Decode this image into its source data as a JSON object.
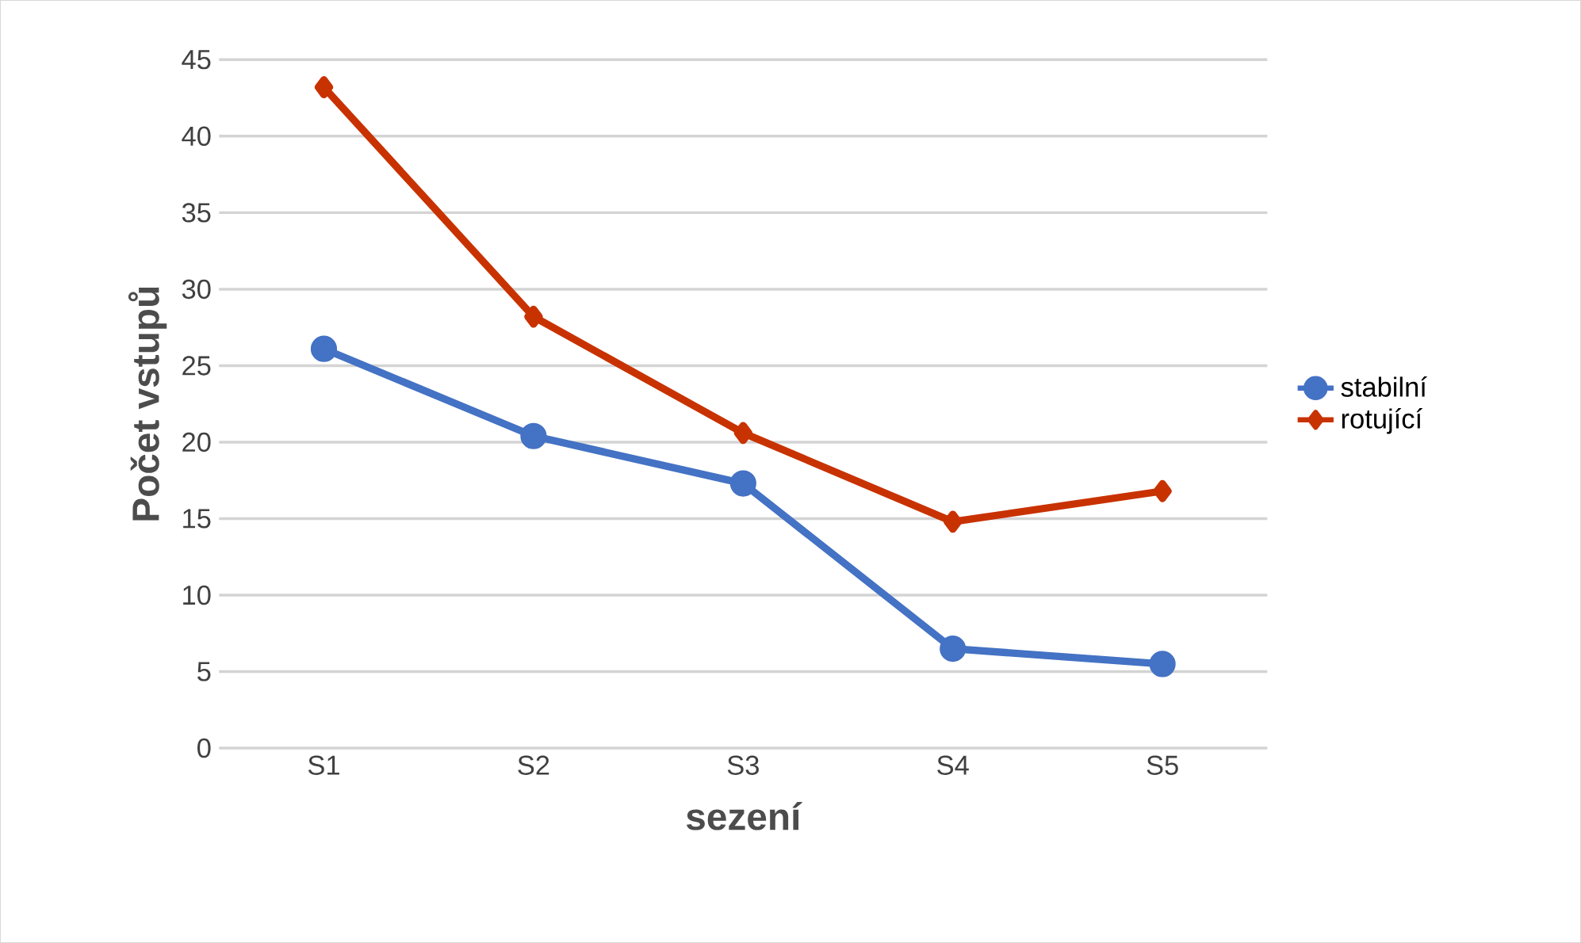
{
  "chart_data": {
    "type": "line",
    "xlabel": "sezení",
    "ylabel": "Počet vstupů",
    "categories": [
      "S1",
      "S2",
      "S3",
      "S4",
      "S5"
    ],
    "series": [
      {
        "name": "stabilní",
        "color": "#4472c4",
        "marker": "circle",
        "values": [
          26.1,
          20.4,
          17.3,
          6.5,
          5.5
        ]
      },
      {
        "name": "rotující",
        "color": "#c83200",
        "marker": "diamond",
        "values": [
          43.2,
          28.2,
          20.6,
          14.8,
          16.8
        ]
      }
    ],
    "ylim": [
      0,
      45
    ],
    "yticks": [
      0,
      5,
      10,
      15,
      20,
      25,
      30,
      35,
      40,
      45
    ],
    "grid": "y",
    "legend": "right"
  }
}
